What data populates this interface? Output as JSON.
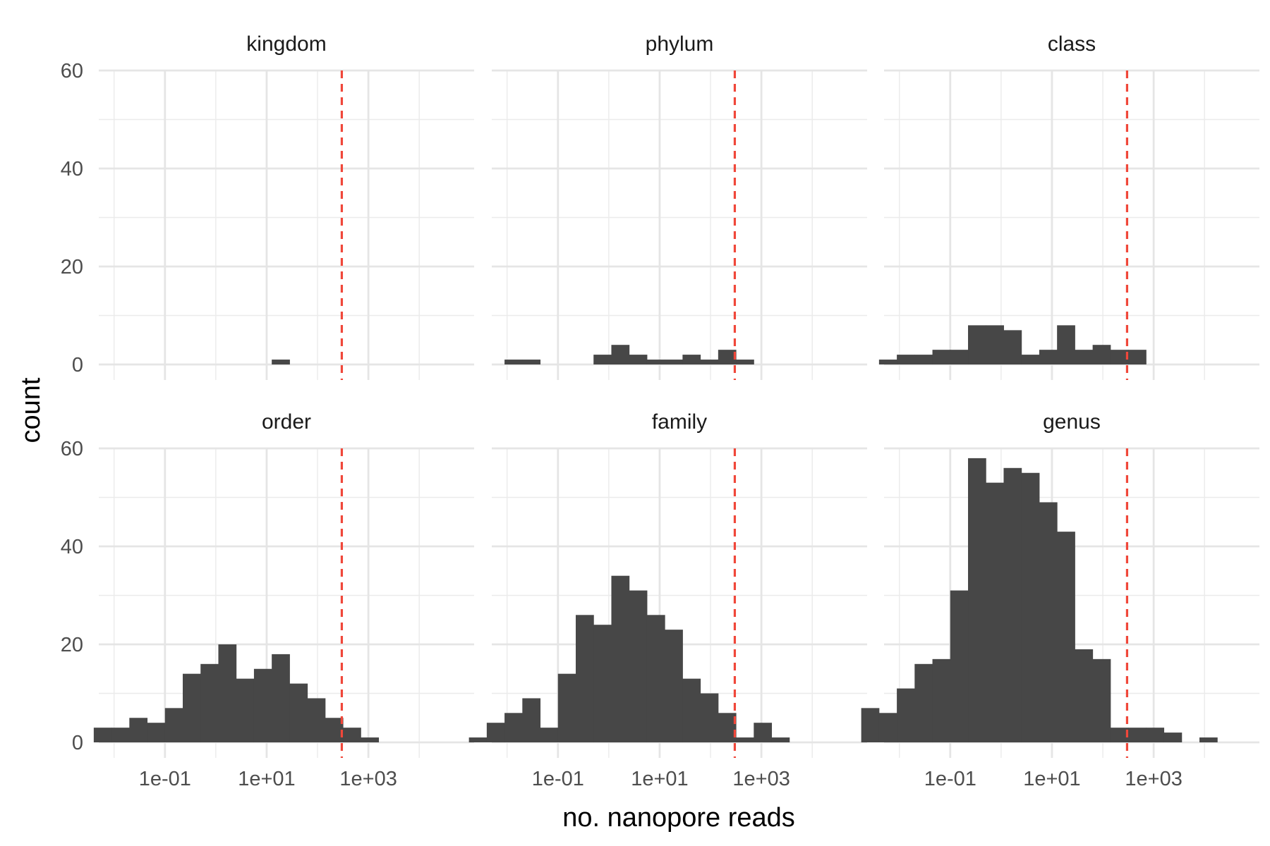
{
  "chart_data": {
    "type": "histogram",
    "facet_layout": "3 columns x 2 rows",
    "xlabel": "no. nanopore reads",
    "ylabel": "count",
    "x_scale": "log10",
    "x_ticks": [
      "1e-01",
      "1e+01",
      "1e+03"
    ],
    "xlim": [
      0.005,
      120000
    ],
    "y_ticks": [
      "0",
      "20",
      "40",
      "60"
    ],
    "ylim": [
      0,
      60
    ],
    "grid": true,
    "legend": "none",
    "bar_color": "#474747",
    "threshold": {
      "x": 300,
      "color": "#f0473a",
      "style": "dashed"
    },
    "bin_edges_log10": [
      -2.75,
      -2.4,
      -2.05,
      -1.7,
      -1.35,
      -1.0,
      -0.65,
      -0.3,
      0.05,
      0.4,
      0.75,
      1.1,
      1.45,
      1.8,
      2.15,
      2.5,
      2.85,
      3.2,
      3.55,
      3.9,
      4.25,
      4.6
    ],
    "panels": [
      {
        "title": "kingdom",
        "counts": [
          0,
          0,
          0,
          0,
          0,
          0,
          0,
          0,
          0,
          0,
          0,
          1,
          0,
          0,
          0,
          0,
          0,
          0,
          0,
          0,
          0
        ]
      },
      {
        "title": "phylum",
        "counts": [
          0,
          0,
          1,
          1,
          0,
          0,
          0,
          2,
          4,
          2,
          1,
          1,
          2,
          1,
          3,
          1,
          0,
          0,
          0,
          0,
          0
        ]
      },
      {
        "title": "class",
        "counts": [
          0,
          1,
          2,
          2,
          3,
          3,
          8,
          8,
          7,
          2,
          3,
          8,
          3,
          4,
          3,
          3,
          0,
          0,
          0,
          0,
          0
        ]
      },
      {
        "title": "order",
        "counts": [
          0,
          3,
          3,
          5,
          4,
          7,
          14,
          16,
          20,
          13,
          15,
          18,
          12,
          9,
          5,
          3,
          1,
          0,
          0,
          0,
          0
        ]
      },
      {
        "title": "family",
        "counts": [
          1,
          4,
          6,
          9,
          3,
          14,
          26,
          24,
          34,
          31,
          26,
          23,
          13,
          10,
          6,
          1,
          4,
          1,
          0,
          0,
          0
        ]
      },
      {
        "title": "genus",
        "counts": [
          7,
          6,
          11,
          16,
          17,
          31,
          58,
          53,
          56,
          55,
          49,
          43,
          19,
          17,
          3,
          3,
          3,
          2,
          0,
          1,
          0
        ]
      }
    ]
  }
}
